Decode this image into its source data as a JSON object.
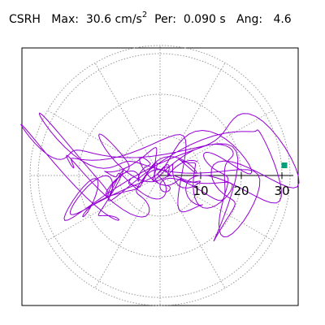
{
  "header": {
    "station": "CSRH",
    "max_label": "Max:",
    "max_value": "30.6",
    "max_unit": "cm/s",
    "max_exp": "2",
    "per_label": "Per:",
    "per_value": "0.090 s",
    "ang_label": "Ang:",
    "ang_value": "4.6"
  },
  "chart_data": {
    "type": "line",
    "title": "CSRH  Max: 30.6 cm/s2  Per: 0.090 s  Ang: 4.6",
    "coordinate_system": "polar",
    "r_max": 32,
    "ring_values": [
      10,
      20,
      30
    ],
    "ring_tick_labels": [
      "10",
      "20",
      "30"
    ],
    "spoke_angles_deg": [
      0,
      30,
      60,
      90,
      120,
      150,
      180,
      210,
      240,
      270,
      300,
      330
    ],
    "grid": true,
    "max_marker": {
      "x": 30.6,
      "y": 2.5
    },
    "orbit": {
      "x_components": [
        {
          "amp": 22,
          "freq": 1,
          "phase": 0.2
        },
        {
          "amp": 9,
          "freq": 3,
          "phase": 1.1
        },
        {
          "amp": 4,
          "freq": 7,
          "phase": 0.5
        }
      ],
      "y_components": [
        {
          "amp": 8,
          "freq": 2,
          "phase": 0.7
        },
        {
          "amp": 5,
          "freq": 5,
          "phase": 2.0
        },
        {
          "amp": 2.5,
          "freq": 9,
          "phase": 0.3
        }
      ],
      "samples": 900,
      "envelope_max": 1.0
    },
    "colors": {
      "trace": "#9400d3",
      "marker": "#00a07a",
      "grid": "#999999",
      "axis": "#000000"
    }
  }
}
